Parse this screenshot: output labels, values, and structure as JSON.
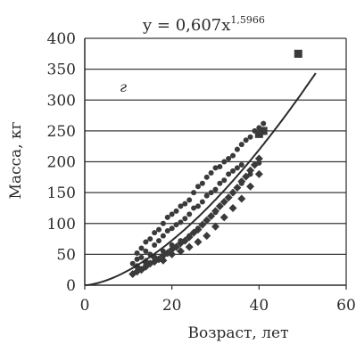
{
  "chart_data": {
    "type": "scatter",
    "title": {
      "main": "y = 0,607x",
      "exponent": "1,5966"
    },
    "panel_letter": "г",
    "xlabel": "Возраст, лет",
    "ylabel": "Масса, кг",
    "xlim": [
      0,
      60
    ],
    "ylim": [
      0,
      400
    ],
    "x_ticks": [
      "0",
      "20",
      "40",
      "60"
    ],
    "y_ticks": [
      "0",
      "50",
      "100",
      "150",
      "200",
      "250",
      "300",
      "350",
      "400"
    ],
    "grid": "horizontal",
    "colors": {
      "ink": "#2b2b2b",
      "grid": "#3a3a3a",
      "points": "#3a3a3a"
    },
    "series": [
      {
        "marker": "circle",
        "points": [
          [
            11,
            35
          ],
          [
            12,
            42
          ],
          [
            12,
            52
          ],
          [
            13,
            60
          ],
          [
            13,
            45
          ],
          [
            14,
            70
          ],
          [
            14,
            55
          ],
          [
            15,
            75
          ],
          [
            15,
            50
          ],
          [
            16,
            85
          ],
          [
            16,
            65
          ],
          [
            17,
            90
          ],
          [
            17,
            72
          ],
          [
            18,
            100
          ],
          [
            18,
            80
          ],
          [
            19,
            110
          ],
          [
            19,
            88
          ],
          [
            20,
            115
          ],
          [
            20,
            92
          ],
          [
            21,
            120
          ],
          [
            21,
            98
          ],
          [
            22,
            128
          ],
          [
            22,
            102
          ],
          [
            23,
            132
          ],
          [
            23,
            108
          ],
          [
            24,
            138
          ],
          [
            24,
            115
          ],
          [
            25,
            150
          ],
          [
            25,
            125
          ],
          [
            26,
            160
          ],
          [
            26,
            128
          ],
          [
            27,
            165
          ],
          [
            27,
            135
          ],
          [
            28,
            175
          ],
          [
            28,
            145
          ],
          [
            29,
            182
          ],
          [
            29,
            150
          ],
          [
            30,
            190
          ],
          [
            30,
            155
          ],
          [
            31,
            192
          ],
          [
            31,
            165
          ],
          [
            32,
            200
          ],
          [
            32,
            170
          ],
          [
            33,
            205
          ],
          [
            33,
            180
          ],
          [
            34,
            210
          ],
          [
            34,
            185
          ],
          [
            35,
            220
          ],
          [
            35,
            190
          ],
          [
            36,
            228
          ],
          [
            36,
            195
          ],
          [
            37,
            235
          ],
          [
            38,
            240
          ],
          [
            39,
            250
          ],
          [
            40,
            255
          ],
          [
            41,
            262
          ],
          [
            14,
            35
          ],
          [
            16,
            45
          ],
          [
            18,
            55
          ],
          [
            20,
            65
          ],
          [
            22,
            72
          ],
          [
            24,
            80
          ],
          [
            26,
            92
          ],
          [
            28,
            105
          ],
          [
            30,
            118
          ],
          [
            32,
            135
          ],
          [
            34,
            150
          ],
          [
            36,
            165
          ],
          [
            38,
            180
          ],
          [
            40,
            198
          ]
        ]
      },
      {
        "marker": "diamond",
        "points": [
          [
            11,
            18
          ],
          [
            12,
            22
          ],
          [
            13,
            25
          ],
          [
            14,
            30
          ],
          [
            15,
            35
          ],
          [
            16,
            38
          ],
          [
            17,
            42
          ],
          [
            18,
            48
          ],
          [
            19,
            52
          ],
          [
            20,
            58
          ],
          [
            21,
            62
          ],
          [
            22,
            68
          ],
          [
            23,
            72
          ],
          [
            24,
            78
          ],
          [
            25,
            85
          ],
          [
            26,
            90
          ],
          [
            27,
            98
          ],
          [
            28,
            105
          ],
          [
            29,
            112
          ],
          [
            30,
            120
          ],
          [
            31,
            128
          ],
          [
            32,
            135
          ],
          [
            33,
            142
          ],
          [
            34,
            150
          ],
          [
            35,
            158
          ],
          [
            36,
            168
          ],
          [
            37,
            176
          ],
          [
            38,
            186
          ],
          [
            39,
            195
          ],
          [
            40,
            205
          ],
          [
            12,
            30
          ],
          [
            14,
            38
          ],
          [
            16,
            45
          ],
          [
            18,
            40
          ],
          [
            20,
            50
          ],
          [
            22,
            55
          ],
          [
            24,
            62
          ],
          [
            26,
            70
          ],
          [
            28,
            80
          ],
          [
            30,
            95
          ],
          [
            32,
            110
          ],
          [
            34,
            125
          ],
          [
            36,
            140
          ],
          [
            38,
            160
          ],
          [
            40,
            180
          ]
        ]
      },
      {
        "marker": "square",
        "points": [
          [
            40,
            245
          ],
          [
            41,
            250
          ],
          [
            49,
            375
          ]
        ]
      }
    ],
    "fit": {
      "coefficient": 0.607,
      "exponent": 1.5966,
      "x_range": [
        0,
        53
      ]
    }
  }
}
